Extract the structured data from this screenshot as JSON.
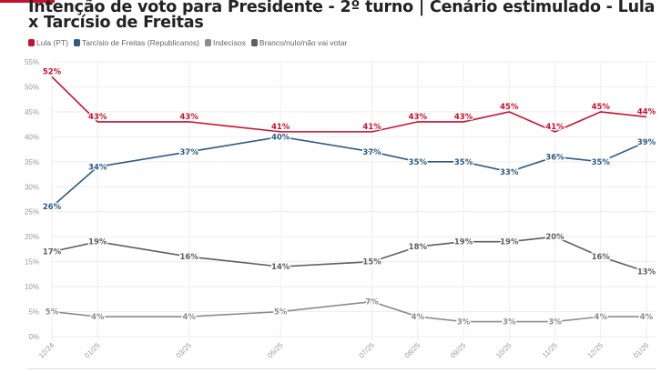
{
  "title": "Intenção de voto para Presidente - 2º turno | Cenário estimulado - Lula x Tarcísio de Freitas",
  "chart_data": {
    "type": "line",
    "title": "Intenção de voto para Presidente - 2º turno | Cenário estimulado - Lula x Tarcísio de Freitas",
    "x": [
      "12/24",
      "01/25",
      "03/25",
      "05/25",
      "07/25",
      "08/25",
      "09/25",
      "10/25",
      "11/25",
      "12/25",
      "01/26"
    ],
    "ylim": [
      0,
      55
    ],
    "yticks": [
      0,
      5,
      10,
      15,
      20,
      25,
      30,
      35,
      40,
      45,
      50,
      55
    ],
    "y_tick_suffix": "%",
    "grid": true,
    "legend_position": "top-left",
    "series": [
      {
        "name": "Lula (PT)",
        "color": "#c8102e",
        "values": [
          52,
          43,
          43,
          41,
          41,
          43,
          43,
          45,
          41,
          45,
          44
        ]
      },
      {
        "name": "Tarcísio de Freitas (Republicanos)",
        "color": "#2e5a84",
        "values": [
          26,
          34,
          37,
          40,
          37,
          35,
          35,
          33,
          36,
          35,
          39
        ]
      },
      {
        "name": "Indecisos",
        "color": "#8c8c8c",
        "values": [
          5,
          4,
          4,
          5,
          7,
          4,
          3,
          3,
          3,
          4,
          4
        ]
      },
      {
        "name": "Branco/nulo/não vai votar",
        "color": "#5e5e5e",
        "values": [
          17,
          19,
          16,
          14,
          15,
          18,
          19,
          19,
          20,
          16,
          13
        ]
      }
    ]
  }
}
